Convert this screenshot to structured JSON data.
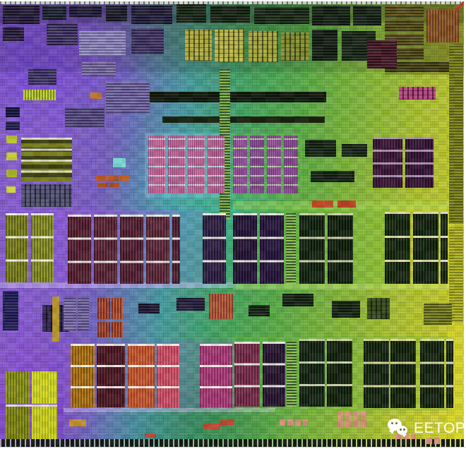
{
  "watermark": {
    "label": "EETOP",
    "icon": "wechat-chat-bubbles-icon"
  },
  "die": {
    "subject": "processor-die-photograph",
    "palette": {
      "purple": "#8a5fd8",
      "cyan": "#49a8a8",
      "green": "#5ab04a",
      "yellow": "#d2d22a",
      "sram_dark": "#1a1028",
      "maroon": "#3a1624",
      "olive": "#7a7f20",
      "amber": "#c08018",
      "red_orange": "#a84028",
      "magenta": "#b84a86",
      "pad_salmon": "#d8907e",
      "watermark_white": "#ffffff",
      "corner_mark_red": "#c03028"
    },
    "blocks": [
      [
        0,
        0,
        657,
        4,
        "ticks",
        "#707870",
        "#d2d8cc"
      ],
      [
        0,
        4,
        657,
        26,
        "flat",
        "rgba(5,5,15,0.30)"
      ],
      [
        0,
        30,
        657,
        70,
        "flat",
        "rgba(10,10,25,0.12)"
      ],
      [
        545,
        4,
        112,
        100,
        "flat",
        "rgba(40,45,5,0.25)"
      ],
      [
        205,
        186,
        122,
        92,
        "flat",
        "rgba(140,200,235,0.35)"
      ],
      [
        328,
        186,
        100,
        92,
        "flat",
        "rgba(110,190,80,0.30)"
      ],
      [
        80,
        294,
        212,
        112,
        "flat",
        "rgba(160,90,230,0.28)"
      ],
      [
        252,
        292,
        88,
        112,
        "flat",
        "rgba(60,185,175,0.30)"
      ],
      [
        398,
        292,
        156,
        112,
        "flat",
        "rgba(120,195,60,0.30)"
      ],
      [
        552,
        288,
        86,
        118,
        "flat",
        "rgba(215,215,45,0.35)"
      ],
      [
        90,
        480,
        250,
        100,
        "flat",
        "rgba(150,90,220,0.22)"
      ],
      [
        330,
        474,
        310,
        106,
        "flat",
        "rgba(110,185,60,0.28)"
      ],
      [
        0,
        398,
        330,
        8,
        "flat",
        "rgba(225,215,255,0.40)"
      ],
      [
        330,
        400,
        326,
        8,
        "flat",
        "rgba(200,235,130,0.40)"
      ],
      [
        90,
        576,
        300,
        6,
        "flat",
        "rgba(235,230,250,0.35)"
      ],
      [
        330,
        283,
        310,
        12,
        "flat",
        "rgba(170,225,90,0.40)"
      ],
      [
        634,
        455,
        22,
        165,
        "flat",
        "rgba(225,220,45,0.40)"
      ],
      [
        0,
        560,
        90,
        60,
        "flat",
        "rgba(120,40,200,0.25)"
      ],
      [
        4,
        6,
        52,
        26,
        "h",
        "#141020",
        "#3a3050"
      ],
      [
        60,
        6,
        34,
        20,
        "h",
        "#10141c",
        "#303848"
      ],
      [
        4,
        36,
        30,
        20,
        "h",
        "#181226",
        "#403356"
      ],
      [
        98,
        6,
        46,
        16,
        "h",
        "#141020",
        "#353052"
      ],
      [
        150,
        6,
        30,
        22,
        "h",
        "#101018",
        "#2e2e40"
      ],
      [
        186,
        6,
        58,
        26,
        "h",
        "#141222",
        "#383354"
      ],
      [
        66,
        30,
        44,
        32,
        "h",
        "#251c3c",
        "#584a80"
      ],
      [
        112,
        42,
        66,
        36,
        "h",
        "#6a5f98",
        "#a09ac8"
      ],
      [
        186,
        38,
        46,
        36,
        "h",
        "#2a2244",
        "#544878"
      ],
      [
        116,
        86,
        48,
        20,
        "h",
        "#55487c",
        "#8a7fb2"
      ],
      [
        250,
        4,
        42,
        26,
        "h",
        "#0e160e",
        "#2c3c26"
      ],
      [
        298,
        6,
        56,
        24,
        "h",
        "#0d150d",
        "#283a24"
      ],
      [
        360,
        8,
        78,
        24,
        "h",
        "#0e160e",
        "#2e4028"
      ],
      [
        262,
        40,
        38,
        44,
        "grid",
        "#b5b244",
        "#55571e"
      ],
      [
        304,
        40,
        42,
        46,
        "grid",
        "#c0bc4a",
        "#5c5e20"
      ],
      [
        352,
        42,
        42,
        44,
        "grid",
        "#aeae40",
        "#4e521c"
      ],
      [
        398,
        44,
        40,
        40,
        "grid",
        "#8a9434",
        "#3e4818"
      ],
      [
        442,
        6,
        54,
        28,
        "h",
        "#0d130d",
        "#263622"
      ],
      [
        442,
        40,
        36,
        44,
        "h",
        "#0c120c",
        "#223220"
      ],
      [
        484,
        42,
        48,
        42,
        "h",
        "#101810",
        "#2a3c24"
      ],
      [
        500,
        6,
        40,
        28,
        "h",
        "#0e140e",
        "#283824"
      ],
      [
        545,
        6,
        55,
        16,
        "h",
        "#3a3414",
        "#6e6428"
      ],
      [
        545,
        26,
        55,
        16,
        "h",
        "#363010",
        "#686024"
      ],
      [
        545,
        46,
        55,
        16,
        "h",
        "#3a3414",
        "#6e6428"
      ],
      [
        545,
        66,
        55,
        16,
        "h",
        "#343010",
        "#625c22"
      ],
      [
        604,
        12,
        46,
        46,
        "v",
        "#6a3c1c",
        "#9a6430"
      ],
      [
        545,
        86,
        92,
        14,
        "h",
        "#2e2a10",
        "#585420"
      ],
      [
        200,
        128,
        262,
        15,
        "h",
        "#0b100a",
        "#1c2816"
      ],
      [
        230,
        163,
        230,
        9,
        "flat",
        "#18220f"
      ],
      [
        311,
        96,
        15,
        212,
        "h",
        "#8fb850",
        "#2c5526"
      ],
      [
        33,
        125,
        46,
        15,
        "v",
        "#ccd83a",
        "#7a8f1e"
      ],
      [
        128,
        129,
        16,
        9,
        "flat",
        "#c07a2a"
      ],
      [
        8,
        150,
        20,
        14,
        "h",
        "#101030",
        "#2a2a5a"
      ],
      [
        8,
        170,
        20,
        12,
        "h",
        "#141438",
        "#303060"
      ],
      [
        150,
        114,
        62,
        44,
        "h",
        "#4a3f75",
        "#867ab2"
      ],
      [
        92,
        150,
        56,
        28,
        "h",
        "#3a2f5e",
        "#6a5f96"
      ],
      [
        40,
        96,
        40,
        22,
        "h",
        "#2a2248",
        "#554a80"
      ],
      [
        565,
        121,
        52,
        18,
        "grid",
        "#c04a8a",
        "#5a1f3a"
      ],
      [
        520,
        55,
        42,
        40,
        "h",
        "#2a1018",
        "#5a2a38"
      ],
      [
        636,
        60,
        20,
        255,
        "h",
        "#8a8f22",
        "#565a14"
      ],
      [
        636,
        320,
        20,
        135,
        "h",
        "#bcbe28",
        "#7e821a"
      ],
      [
        9,
        190,
        15,
        11,
        "flat",
        "#b9c42e"
      ],
      [
        9,
        214,
        15,
        11,
        "flat",
        "#c6cf36"
      ],
      [
        9,
        238,
        15,
        11,
        "flat",
        "#aab829"
      ],
      [
        9,
        262,
        13,
        9,
        "flat",
        "#ced838"
      ],
      [
        30,
        193,
        72,
        62,
        "hh",
        "#7a7f20",
        "#3c4012",
        4,
        "rgba(240,240,225,0.85)"
      ],
      [
        30,
        259,
        72,
        32,
        "grid",
        "#5a5a7c",
        "#28283e"
      ],
      [
        136,
        246,
        15,
        8,
        "flat",
        "#c25a20"
      ],
      [
        153,
        246,
        15,
        8,
        "flat",
        "#b85420"
      ],
      [
        170,
        246,
        13,
        8,
        "flat",
        "#c05e24"
      ],
      [
        138,
        257,
        14,
        6,
        "flat",
        "#a84818"
      ],
      [
        155,
        257,
        14,
        6,
        "flat",
        "#b05020"
      ],
      [
        160,
        222,
        18,
        13,
        "flat",
        "#7ad8d0"
      ],
      [
        210,
        190,
        24,
        82,
        "cells",
        "#cc6f9d",
        "#cfe6ec"
      ],
      [
        238,
        190,
        24,
        82,
        "cells",
        "#c86a9a",
        "#cfe6ec"
      ],
      [
        266,
        190,
        24,
        82,
        "cells",
        "#cc6f9d",
        "#cfe6ec"
      ],
      [
        294,
        190,
        24,
        82,
        "cells",
        "#c46898",
        "#cfe6ec"
      ],
      [
        330,
        190,
        20,
        82,
        "cells",
        "#9a58a0",
        "#bfe0a8"
      ],
      [
        354,
        190,
        20,
        82,
        "cells",
        "#8f5098",
        "#bfe0a8"
      ],
      [
        378,
        190,
        20,
        82,
        "cells",
        "#9a58a0",
        "#bfe0a8"
      ],
      [
        402,
        190,
        20,
        82,
        "cells",
        "#8f5098",
        "#bfe0a8"
      ],
      [
        528,
        192,
        42,
        72,
        "v",
        "#281226",
        "#50204a",
        4,
        "rgba(220,200,230,0.7)"
      ],
      [
        574,
        192,
        40,
        72,
        "v",
        "#241024",
        "#481e44",
        4,
        "rgba(220,200,230,0.7)"
      ],
      [
        432,
        196,
        44,
        24,
        "h",
        "#0e160e",
        "#263a22"
      ],
      [
        484,
        202,
        36,
        18,
        "h",
        "#101810",
        "#2a3c26"
      ],
      [
        440,
        240,
        62,
        16,
        "h",
        "#0d140d",
        "#243621"
      ],
      [
        442,
        282,
        30,
        10,
        "flat",
        "#c04a28"
      ],
      [
        478,
        282,
        26,
        10,
        "flat",
        "#b84426"
      ],
      [
        8,
        300,
        32,
        98,
        "v",
        "#5a5f14",
        "#8a8f28",
        3
      ],
      [
        44,
        300,
        32,
        98,
        "v",
        "#63681a",
        "#989e2e",
        3
      ],
      [
        96,
        302,
        33,
        98,
        "v",
        "#3a1624",
        "#6b3042",
        3
      ],
      [
        133,
        302,
        33,
        98,
        "v",
        "#401a28",
        "#703648",
        3
      ],
      [
        170,
        302,
        33,
        98,
        "v",
        "#3a1624",
        "#683044",
        3
      ],
      [
        207,
        302,
        33,
        98,
        "v",
        "#421c2a",
        "#74384a",
        3
      ],
      [
        244,
        302,
        11,
        98,
        "v",
        "#3a1624",
        "#642e40",
        3
      ],
      [
        287,
        300,
        33,
        100,
        "v",
        "#201430",
        "#403055",
        3
      ],
      [
        330,
        300,
        34,
        100,
        "v",
        "#180e26",
        "#362248",
        3
      ],
      [
        368,
        300,
        34,
        100,
        "v",
        "#1a1028",
        "#382450",
        3
      ],
      [
        405,
        300,
        14,
        100,
        "h",
        "#9cc45a",
        "#305a28"
      ],
      [
        424,
        300,
        36,
        100,
        "v",
        "#0c140c",
        "#24381f",
        3,
        "rgba(235,240,200,0.85)"
      ],
      [
        464,
        300,
        36,
        100,
        "v",
        "#0a120a",
        "#203518",
        3,
        "rgba(235,240,200,0.85)"
      ],
      [
        545,
        298,
        36,
        102,
        "v",
        "#0e160c",
        "#283c1e",
        3,
        "rgba(240,240,180,0.9)"
      ],
      [
        585,
        298,
        36,
        102,
        "v",
        "#0c140a",
        "#243a1c",
        3,
        "rgba(240,240,180,0.9)"
      ],
      [
        624,
        298,
        10,
        102,
        "v",
        "#10180e",
        "#2c401f",
        3
      ],
      [
        4,
        410,
        22,
        56,
        "h",
        "#181440",
        "#343070"
      ],
      [
        60,
        430,
        38,
        38,
        "grid",
        "#3a2f5a",
        "#1a1230"
      ],
      [
        74,
        418,
        10,
        64,
        "flat",
        "#b8962a"
      ],
      [
        90,
        420,
        18,
        46,
        "h",
        "#55487e",
        "#8a7fb4"
      ],
      [
        110,
        420,
        16,
        46,
        "h",
        "#4f4278",
        "#857aae"
      ],
      [
        138,
        420,
        18,
        30,
        "v",
        "#7a2a20",
        "#b85a3a"
      ],
      [
        158,
        420,
        16,
        30,
        "v",
        "#842e22",
        "#c0603c"
      ],
      [
        138,
        454,
        18,
        22,
        "v",
        "#7a2a20",
        "#b05636"
      ],
      [
        158,
        454,
        16,
        22,
        "v",
        "#7e2c20",
        "#b85a38"
      ],
      [
        196,
        428,
        30,
        14,
        "h",
        "#141020",
        "#322a4a"
      ],
      [
        250,
        420,
        40,
        18,
        "h",
        "#18142a",
        "#383052"
      ],
      [
        296,
        414,
        34,
        36,
        "v",
        "#8a3a2a",
        "#c06a40"
      ],
      [
        352,
        430,
        30,
        16,
        "h",
        "#0e160e",
        "#283a22"
      ],
      [
        400,
        414,
        44,
        18,
        "h",
        "#0c140c",
        "#243620"
      ],
      [
        470,
        424,
        40,
        24,
        "h",
        "#0e160e",
        "#28381f"
      ],
      [
        520,
        420,
        32,
        30,
        "grid",
        "#3e5224",
        "#1c2a10"
      ],
      [
        600,
        428,
        40,
        30,
        "h",
        "#4a4f16",
        "#8a8f2a"
      ],
      [
        8,
        524,
        34,
        46,
        "v",
        "#9aa01e",
        "#6a7016"
      ],
      [
        45,
        524,
        36,
        46,
        "v",
        "#e0e028",
        "#b2bc20"
      ],
      [
        8,
        574,
        34,
        46,
        "v",
        "#8f9618",
        "#626810"
      ],
      [
        45,
        574,
        36,
        46,
        "v",
        "#d8da24",
        "#aab41c"
      ],
      [
        8,
        571,
        73,
        3,
        "flat",
        "rgba(245,245,225,0.85)"
      ],
      [
        100,
        485,
        34,
        90,
        "v",
        "#c08018",
        "#7e5410",
        3
      ],
      [
        137,
        485,
        40,
        90,
        "v",
        "#38121a",
        "#5e2630",
        3
      ],
      [
        181,
        485,
        38,
        90,
        "v",
        "#a84028",
        "#d06838",
        3
      ],
      [
        222,
        485,
        32,
        90,
        "v",
        "#b03a4e",
        "#d86078",
        3
      ],
      [
        283,
        485,
        46,
        90,
        "v",
        "#8a2a60",
        "#b84a86",
        3
      ],
      [
        332,
        482,
        36,
        92,
        "v",
        "#5a1f3a",
        "#8a3a58",
        3
      ],
      [
        372,
        482,
        32,
        92,
        "v",
        "#1c1024",
        "#3a2440",
        3
      ],
      [
        406,
        482,
        14,
        92,
        "h",
        "#9cc45a",
        "#2f5828"
      ],
      [
        424,
        478,
        36,
        96,
        "v",
        "#0e160e",
        "#243822",
        3,
        "rgba(235,240,200,0.85)"
      ],
      [
        463,
        478,
        36,
        96,
        "v",
        "#0c140c",
        "#203516",
        3,
        "rgba(235,240,200,0.85)"
      ],
      [
        515,
        478,
        36,
        98,
        "v",
        "#0e160c",
        "#263a1e",
        3,
        "rgba(240,238,170,0.9)"
      ],
      [
        553,
        478,
        36,
        98,
        "v",
        "#0c140a",
        "#223818",
        3,
        "rgba(240,238,170,0.9)"
      ],
      [
        595,
        478,
        34,
        98,
        "v",
        "#0e160c",
        "#243a1c",
        3,
        "rgba(240,238,170,0.9)"
      ],
      [
        632,
        478,
        10,
        98,
        "v",
        "#10180e",
        "#2a3e1e",
        3
      ],
      [
        0,
        620,
        657,
        12,
        "ticks",
        "rgba(205,215,190,0.55)",
        "#151a12"
      ],
      [
        98,
        592,
        24,
        10,
        "flat",
        "#c09030"
      ],
      [
        205,
        612,
        16,
        6,
        "flat",
        "#b84838"
      ],
      [
        288,
        598,
        24,
        9,
        "flat",
        "#c04a34"
      ],
      [
        312,
        592,
        20,
        8,
        "flat",
        "#b8462e"
      ],
      [
        396,
        592,
        40,
        9,
        "pads",
        "#d8907e",
        "rgba(0,0,0,0)"
      ],
      [
        478,
        581,
        44,
        10,
        "pads",
        "#dc9480",
        "rgba(0,0,0,0)"
      ],
      [
        478,
        593,
        44,
        10,
        "pads",
        "#d48c7a",
        "rgba(0,0,0,0)"
      ],
      [
        560,
        612,
        28,
        8,
        "pads",
        "#d8907e",
        "rgba(0,0,0,0)"
      ],
      [
        604,
        618,
        22,
        9,
        "pads",
        "#d8907e",
        "rgba(0,0,0,0)"
      ],
      [
        644,
        0,
        14,
        14,
        "diag",
        "#c03028"
      ]
    ]
  }
}
